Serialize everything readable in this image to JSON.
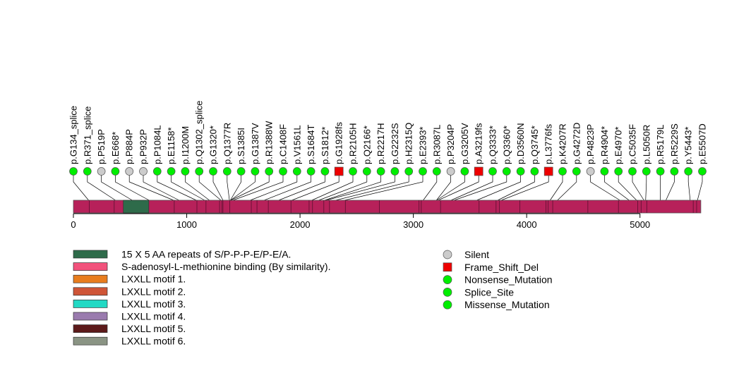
{
  "chart_data": {
    "type": "lollipop",
    "axis": {
      "min": 0,
      "max": 5550,
      "ticks": [
        0,
        1000,
        2000,
        3000,
        4000,
        5000
      ]
    },
    "protein_length": 5537,
    "backbone_color": "#B7215A",
    "domains": [
      {
        "name": "15 X 5 AA repeats of S/P-P-P-E/P-E/A.",
        "start": 440,
        "end": 665,
        "color": "#2E6B4A"
      }
    ],
    "minor_features_at": [
      140,
      360,
      540,
      665,
      890,
      1090,
      1170,
      1290,
      1310,
      1320,
      1380,
      1570,
      1620,
      1720,
      1920,
      2080,
      2110,
      2210,
      2260,
      2400,
      2700,
      3050,
      3070,
      3240,
      3580,
      3730,
      3760,
      3940,
      4170,
      4190,
      4230,
      4540,
      4810,
      4980,
      5010,
      5060,
      5470,
      5500
    ],
    "mutations": [
      {
        "label": "p.G134_splice",
        "pos": 134,
        "type": "Splice_Site"
      },
      {
        "label": "p.R371_splice",
        "pos": 371,
        "type": "Splice_Site"
      },
      {
        "label": "p.P519P",
        "pos": 519,
        "type": "Silent"
      },
      {
        "label": "p.E668*",
        "pos": 668,
        "type": "Nonsense_Mutation"
      },
      {
        "label": "p.P884P",
        "pos": 884,
        "type": "Silent"
      },
      {
        "label": "p.P932P",
        "pos": 932,
        "type": "Silent"
      },
      {
        "label": "p.P1084L",
        "pos": 1084,
        "type": "Missense_Mutation"
      },
      {
        "label": "p.E1158*",
        "pos": 1158,
        "type": "Nonsense_Mutation"
      },
      {
        "label": "p.I1200M",
        "pos": 1200,
        "type": "Missense_Mutation"
      },
      {
        "label": "p.Q1302_splice",
        "pos": 1302,
        "type": "Splice_Site"
      },
      {
        "label": "p.G1320*",
        "pos": 1320,
        "type": "Nonsense_Mutation"
      },
      {
        "label": "p.Q1377R",
        "pos": 1377,
        "type": "Missense_Mutation"
      },
      {
        "label": "p.S1385I",
        "pos": 1385,
        "type": "Missense_Mutation"
      },
      {
        "label": "p.G1387V",
        "pos": 1387,
        "type": "Missense_Mutation"
      },
      {
        "label": "p.R1388W",
        "pos": 1388,
        "type": "Missense_Mutation"
      },
      {
        "label": "p.C1408F",
        "pos": 1408,
        "type": "Missense_Mutation"
      },
      {
        "label": "p.V1561L",
        "pos": 1561,
        "type": "Missense_Mutation"
      },
      {
        "label": "p.S1684T",
        "pos": 1684,
        "type": "Missense_Mutation"
      },
      {
        "label": "p.S1812*",
        "pos": 1812,
        "type": "Nonsense_Mutation"
      },
      {
        "label": "p.G1928fs",
        "pos": 1928,
        "type": "Frame_Shift_Del"
      },
      {
        "label": "p.R2105H",
        "pos": 2105,
        "type": "Missense_Mutation"
      },
      {
        "label": "p.Q2166*",
        "pos": 2166,
        "type": "Nonsense_Mutation"
      },
      {
        "label": "p.R2217H",
        "pos": 2217,
        "type": "Missense_Mutation"
      },
      {
        "label": "p.G2232S",
        "pos": 2232,
        "type": "Missense_Mutation"
      },
      {
        "label": "p.H2315Q",
        "pos": 2315,
        "type": "Missense_Mutation"
      },
      {
        "label": "p.E2393*",
        "pos": 2393,
        "type": "Nonsense_Mutation"
      },
      {
        "label": "p.R3087L",
        "pos": 3087,
        "type": "Missense_Mutation"
      },
      {
        "label": "p.P3204P",
        "pos": 3204,
        "type": "Silent"
      },
      {
        "label": "p.G3205V",
        "pos": 3205,
        "type": "Missense_Mutation"
      },
      {
        "label": "p.A3219fs",
        "pos": 3219,
        "type": "Frame_Shift_Del"
      },
      {
        "label": "p.Q3333*",
        "pos": 3333,
        "type": "Nonsense_Mutation"
      },
      {
        "label": "p.Q3360*",
        "pos": 3360,
        "type": "Nonsense_Mutation"
      },
      {
        "label": "p.D3560N",
        "pos": 3560,
        "type": "Missense_Mutation"
      },
      {
        "label": "p.Q3745*",
        "pos": 3745,
        "type": "Nonsense_Mutation"
      },
      {
        "label": "p.L3776fs",
        "pos": 3776,
        "type": "Frame_Shift_Del"
      },
      {
        "label": "p.K4207R",
        "pos": 4207,
        "type": "Missense_Mutation"
      },
      {
        "label": "p.G4272D",
        "pos": 4272,
        "type": "Missense_Mutation"
      },
      {
        "label": "p.P4823P",
        "pos": 4823,
        "type": "Silent"
      },
      {
        "label": "p.R4904*",
        "pos": 4904,
        "type": "Nonsense_Mutation"
      },
      {
        "label": "p.E4970*",
        "pos": 4970,
        "type": "Nonsense_Mutation"
      },
      {
        "label": "p.C5035F",
        "pos": 5035,
        "type": "Missense_Mutation"
      },
      {
        "label": "p.L5050R",
        "pos": 5050,
        "type": "Missense_Mutation"
      },
      {
        "label": "p.R5179L",
        "pos": 5179,
        "type": "Missense_Mutation"
      },
      {
        "label": "p.R5229S",
        "pos": 5229,
        "type": "Missense_Mutation"
      },
      {
        "label": "p.Y5443*",
        "pos": 5443,
        "type": "Nonsense_Mutation"
      },
      {
        "label": "p.E5507D",
        "pos": 5507,
        "type": "Missense_Mutation"
      }
    ],
    "domain_legend": [
      {
        "label": "15 X 5 AA repeats of S/P-P-P-E/P-E/A.",
        "color": "#2E6B4A"
      },
      {
        "label": "S-adenosyl-L-methionine binding (By similarity).",
        "color": "#F2527C"
      },
      {
        "label": "LXXLL motif 1.",
        "color": "#E87D1E"
      },
      {
        "label": "LXXLL motif 2.",
        "color": "#CF5537"
      },
      {
        "label": "LXXLL motif 3.",
        "color": "#22D9C4"
      },
      {
        "label": "LXXLL motif 4.",
        "color": "#9A7BAE"
      },
      {
        "label": "LXXLL motif 5.",
        "color": "#5C1A1A"
      },
      {
        "label": "LXXLL motif 6.",
        "color": "#8A9484"
      }
    ],
    "mutation_legend": [
      {
        "label": "Silent",
        "shape": "circle",
        "color": "#CCCCCC"
      },
      {
        "label": "Frame_Shift_Del",
        "shape": "square",
        "color": "#EE0000"
      },
      {
        "label": "Nonsense_Mutation",
        "shape": "circle",
        "color": "#00EE00"
      },
      {
        "label": "Splice_Site",
        "shape": "circle",
        "color": "#00EE00"
      },
      {
        "label": "Missense_Mutation",
        "shape": "circle",
        "color": "#00EE00"
      }
    ]
  }
}
